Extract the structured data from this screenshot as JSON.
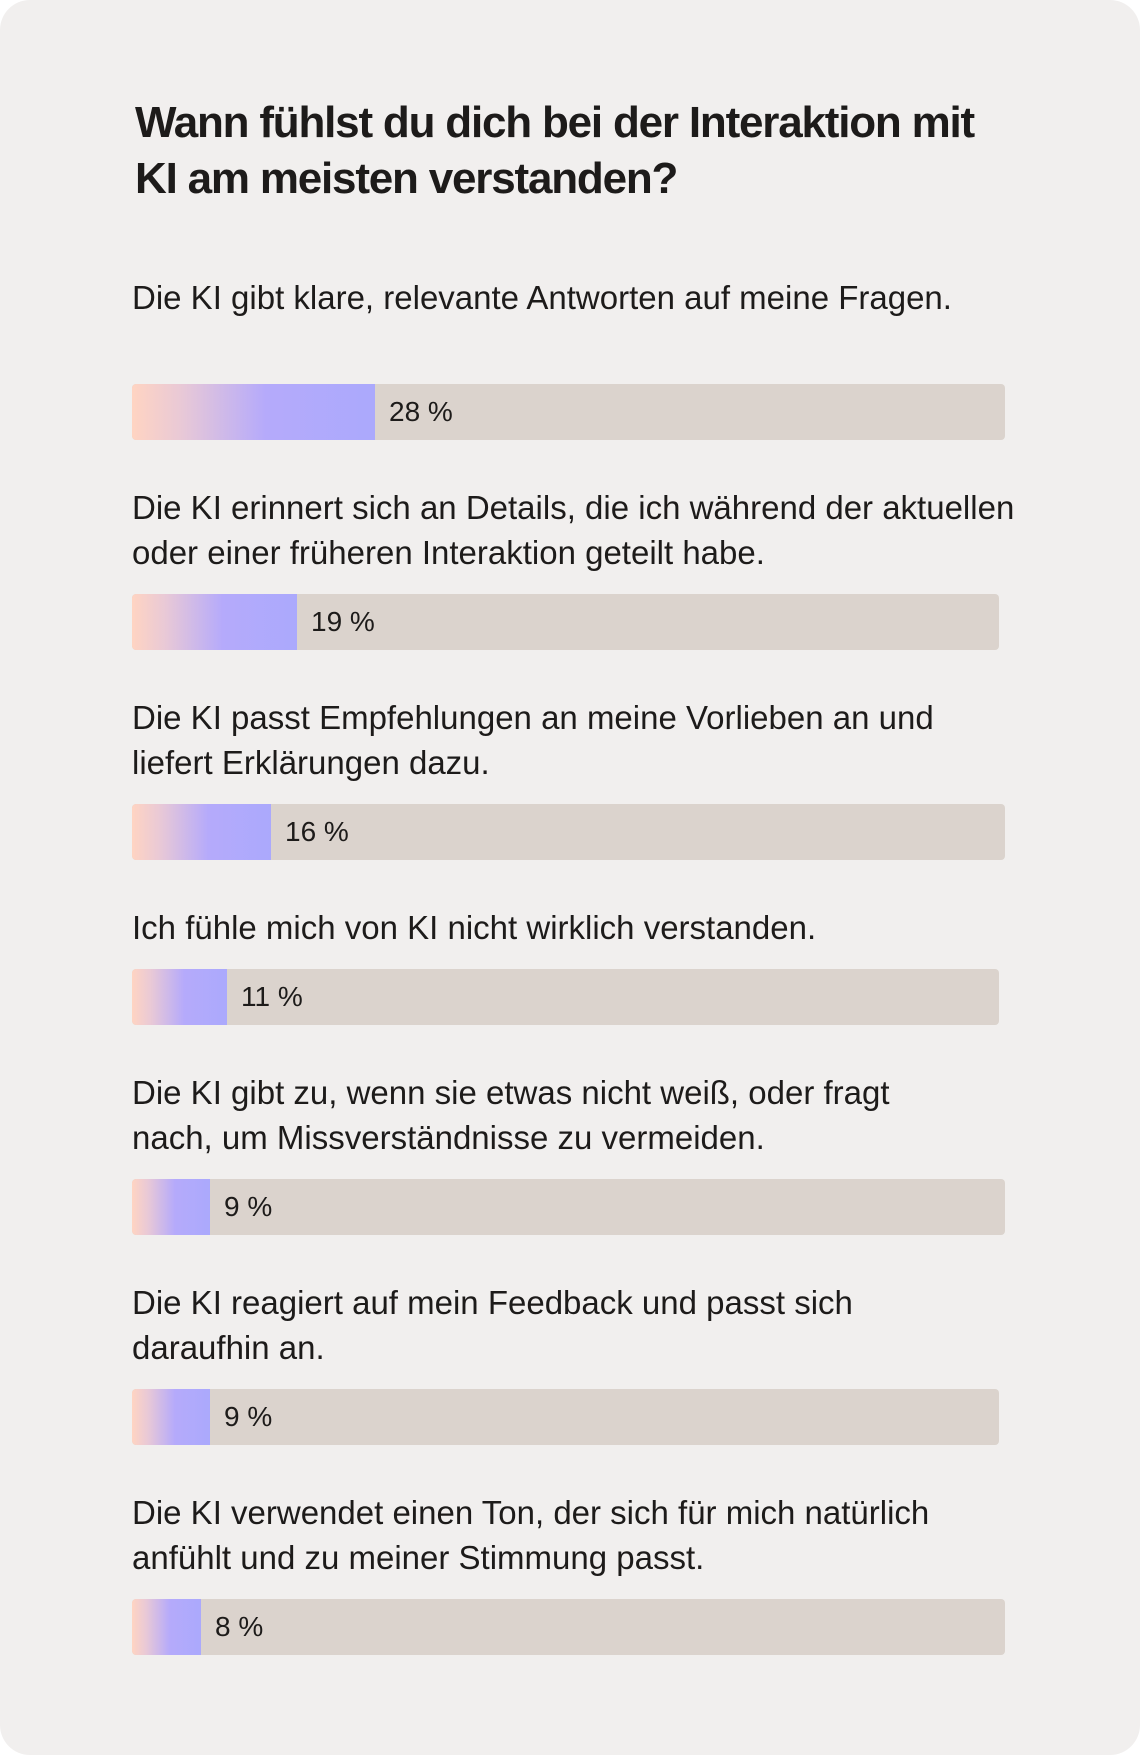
{
  "chart_data": {
    "type": "bar",
    "orientation": "horizontal",
    "title": "Wann fühlst du dich bei der Interaktion mit KI am meisten verstanden?",
    "unit": "%",
    "categories": [
      "Die KI gibt klare, relevante Antworten auf meine Fragen.",
      "Die KI erinnert sich an Details, die ich während der aktuellen oder einer früheren Interaktion geteilt habe.",
      "Die KI passt Empfehlungen an meine Vorlieben an und liefert Erklärungen dazu.",
      "Ich fühle mich von KI nicht wirklich verstanden.",
      "Die KI gibt zu, wenn sie etwas nicht weiß, oder fragt nach, um Missverständnisse zu vermeiden.",
      "Die KI reagiert auf mein Feedback und passt sich daraufhin an.",
      "Die KI verwendet einen Ton, der sich für mich natürlich anfühlt und zu meiner Stimmung passt."
    ],
    "values": [
      28,
      19,
      16,
      11,
      9,
      9,
      8
    ],
    "value_labels": [
      "28 %",
      "19 %",
      "16 %",
      "11 %",
      "9 %",
      "9 %",
      "8 %"
    ],
    "xlim": [
      0,
      100
    ]
  },
  "colors": {
    "background": "#f1efee",
    "track": "#dbd3cd",
    "fill_start": "#ffd4c2",
    "fill_end": "#aba9fc",
    "text": "#1d1b1a"
  }
}
